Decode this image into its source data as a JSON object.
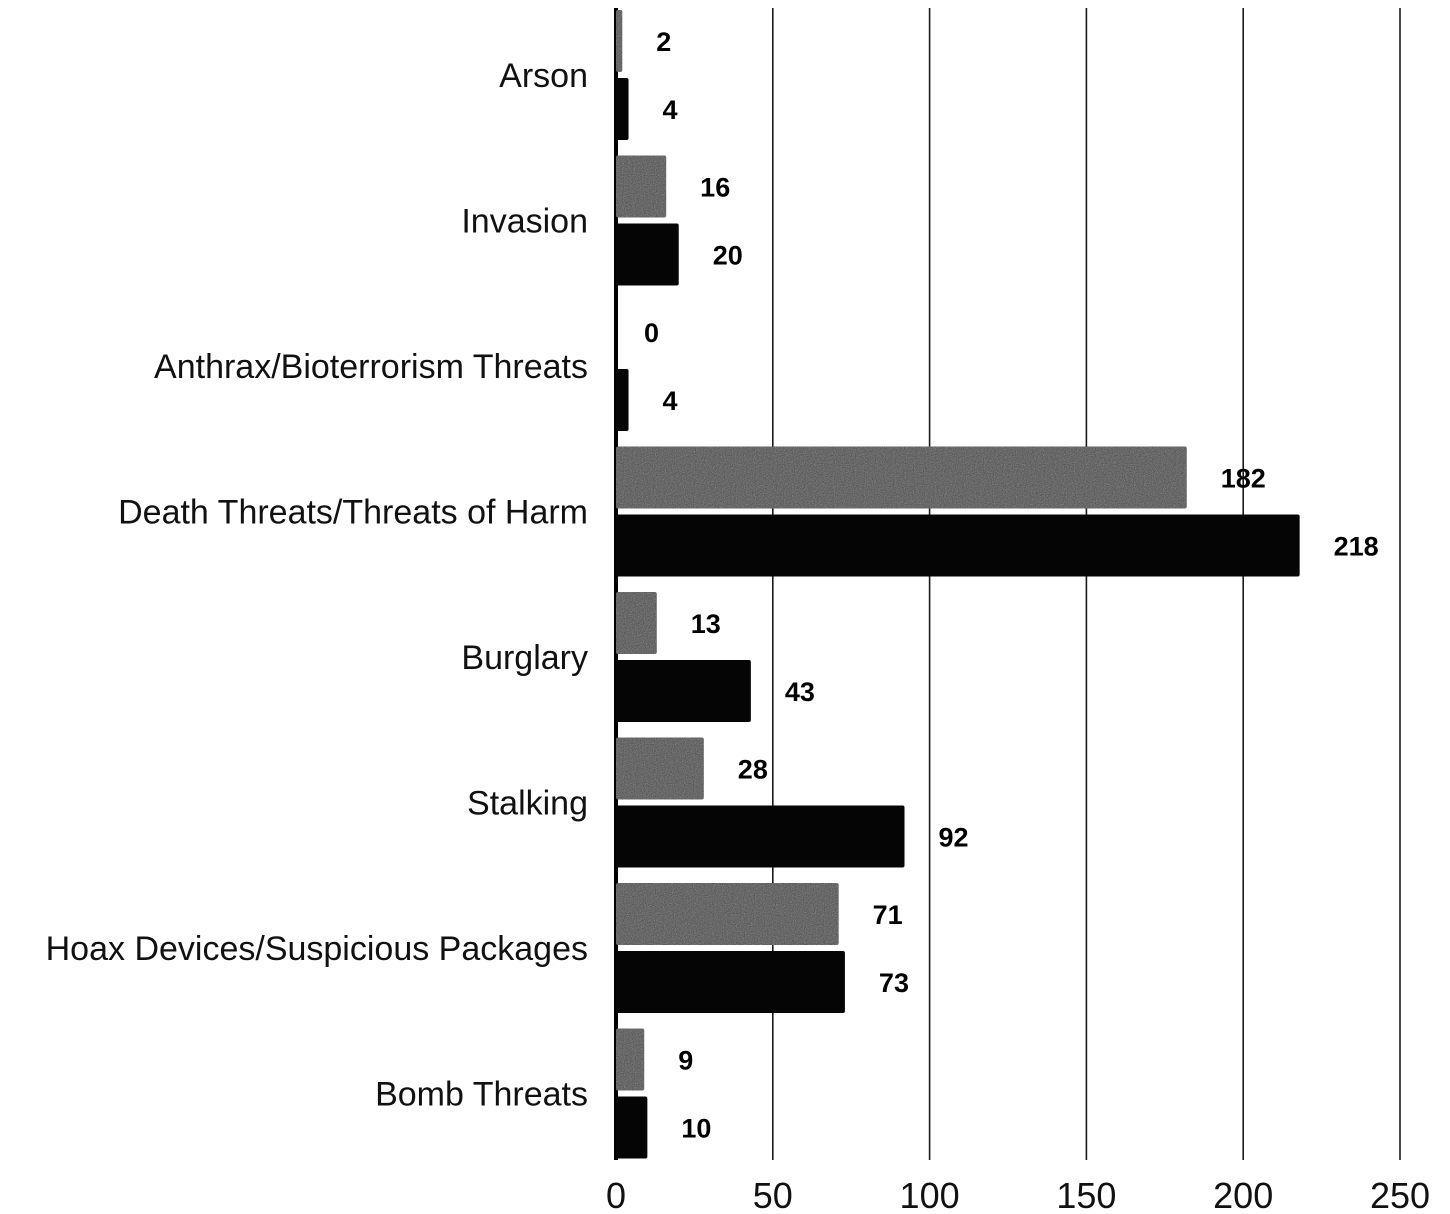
{
  "chart_data": {
    "type": "bar",
    "orientation": "horizontal",
    "categories": [
      "Arson",
      "Invasion",
      "Anthrax/Bioterrorism Threats",
      "Death Threats/Threats of Harm",
      "Burglary",
      "Stalking",
      "Hoax Devices/Suspicious Packages",
      "Bomb Threats"
    ],
    "series": [
      {
        "color": "#4a4a4a",
        "values": [
          2,
          16,
          0,
          182,
          13,
          28,
          71,
          9
        ]
      },
      {
        "color": "#050505",
        "values": [
          4,
          20,
          4,
          218,
          43,
          92,
          73,
          10
        ]
      }
    ],
    "x_ticks": [
      "0",
      "50",
      "100",
      "150",
      "200",
      "250"
    ],
    "xlim": [
      0,
      250
    ],
    "grid": true,
    "legend": "none",
    "data_labels": true,
    "title": "",
    "xlabel": "",
    "ylabel": ""
  }
}
